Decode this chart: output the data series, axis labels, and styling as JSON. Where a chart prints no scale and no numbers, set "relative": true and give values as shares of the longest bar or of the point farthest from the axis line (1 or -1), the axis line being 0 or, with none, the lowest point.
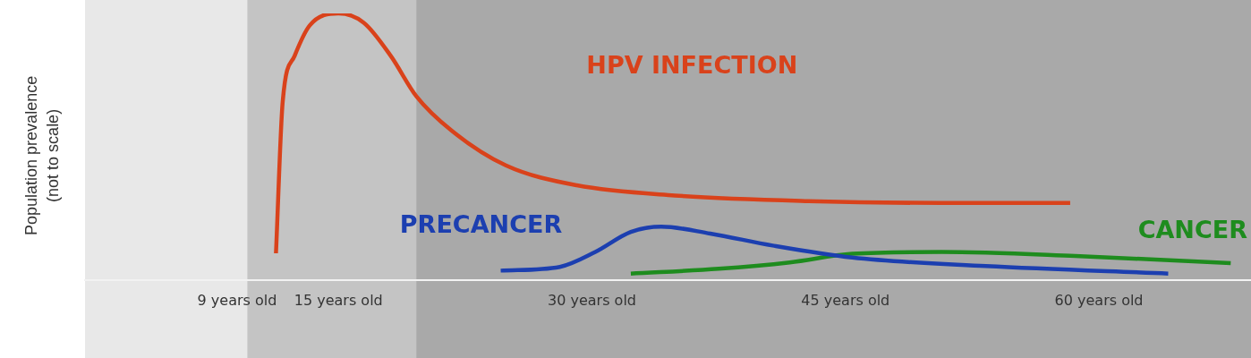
{
  "chart_data": {
    "type": "line",
    "relative": true,
    "ylabel": "Population prevalence (not to scale)",
    "xlim": [
      0,
      69
    ],
    "xticks": [
      {
        "value": 9,
        "label": "9 years old"
      },
      {
        "value": 15,
        "label": "15 years old"
      },
      {
        "value": 30,
        "label": "30 years old"
      },
      {
        "value": 45,
        "label": "45 years old"
      },
      {
        "value": 60,
        "label": "60 years old"
      }
    ],
    "grid": false,
    "legend": false,
    "marker": "none",
    "line_style": "solid",
    "bands": [
      {
        "axis": "x",
        "from": 0,
        "to": 9.6,
        "color": "#e8e8e8"
      },
      {
        "axis": "x",
        "from": 9.6,
        "to": 19.6,
        "color": "#c4c4c4"
      },
      {
        "axis": "x",
        "from": 19.6,
        "to": 69,
        "color": "#a9a9a9"
      }
    ],
    "series": [
      {
        "name": "HPV INFECTION",
        "color": "#d9421b",
        "x": [
          11.3,
          11.7,
          12.4,
          13.3,
          15,
          16.5,
          18.1,
          19.6,
          21.7,
          24.9,
          29.1,
          34.9,
          42.8,
          50.7,
          58.3
        ],
        "values": [
          0.1,
          0.67,
          0.84,
          0.955,
          1,
          0.965,
          0.84,
          0.69,
          0.56,
          0.43,
          0.355,
          0.317,
          0.296,
          0.289,
          0.289
        ]
      },
      {
        "name": "PRECANCER",
        "color": "#1c3fb0",
        "x": [
          24.6,
          28.1,
          30.2,
          32.3,
          34.1,
          37,
          40.7,
          45.4,
          53.3,
          64.1
        ],
        "values": [
          0.035,
          0.049,
          0.105,
          0.18,
          0.2,
          0.174,
          0.129,
          0.084,
          0.052,
          0.024
        ]
      },
      {
        "name": "CANCER",
        "color": "#1e8c1e",
        "x": [
          32.3,
          37.5,
          41.7,
          45.4,
          50.7,
          58.6,
          67.8
        ],
        "values": [
          0.024,
          0.042,
          0.066,
          0.098,
          0.105,
          0.09,
          0.063
        ]
      }
    ]
  }
}
